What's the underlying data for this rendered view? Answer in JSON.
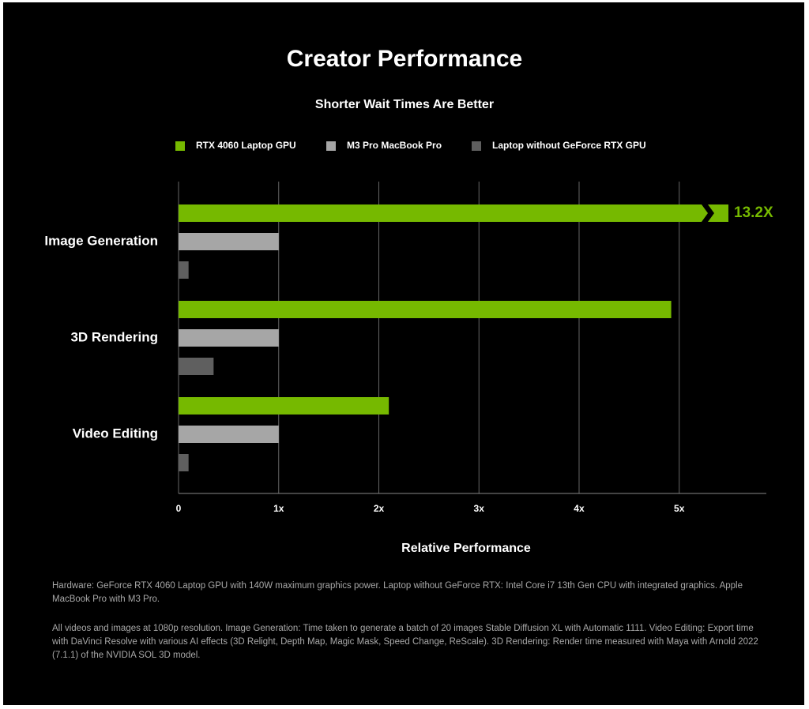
{
  "chart_data": {
    "type": "bar",
    "orientation": "horizontal",
    "title": "Creator Performance",
    "subtitle": "Shorter Wait Times Are Better",
    "x_label": "Relative Performance",
    "categories": [
      "Image Generation",
      "3D Rendering",
      "Video Editing"
    ],
    "series": [
      {
        "name": "RTX 4060 Laptop GPU",
        "color": "#76b900",
        "values": [
          13.2,
          4.92,
          2.1
        ],
        "value_labels": [
          "13.2X",
          null,
          null
        ]
      },
      {
        "name": "M3 Pro MacBook Pro",
        "color": "#a6a6a6",
        "values": [
          1,
          1,
          1
        ]
      },
      {
        "name": "Laptop without GeForce RTX GPU",
        "color": "#5f5f5f",
        "values": [
          0.1,
          0.35,
          0.1
        ]
      }
    ],
    "xlim": [
      0,
      5.87
    ],
    "xticks": [
      0,
      {
        "value": 1,
        "label": "1x"
      },
      {
        "value": 2,
        "label": "2x"
      },
      {
        "value": 3,
        "label": "3x"
      },
      {
        "value": 4,
        "label": "4x"
      },
      {
        "value": 5,
        "label": "5x"
      }
    ],
    "grid": true,
    "legend": "top"
  },
  "footnotes": [
    "Hardware: GeForce RTX 4060 Laptop GPU with 140W maximum graphics power. Laptop without GeForce RTX: Intel Core i7 13th Gen CPU with integrated graphics. Apple MacBook Pro with M3 Pro.",
    "All videos and images at 1080p resolution. Image Generation: Time taken to generate a batch of 20 images Stable Diffusion XL with Automatic 1111. Video Editing: Export time with DaVinci Resolve with various AI effects (3D Relight, Depth Map, Magic Mask, Speed Change, ReScale). 3D Rendering: Render time measured with Maya with Arnold 2022 (7.1.1) of the NVIDIA SOL 3D model."
  ]
}
